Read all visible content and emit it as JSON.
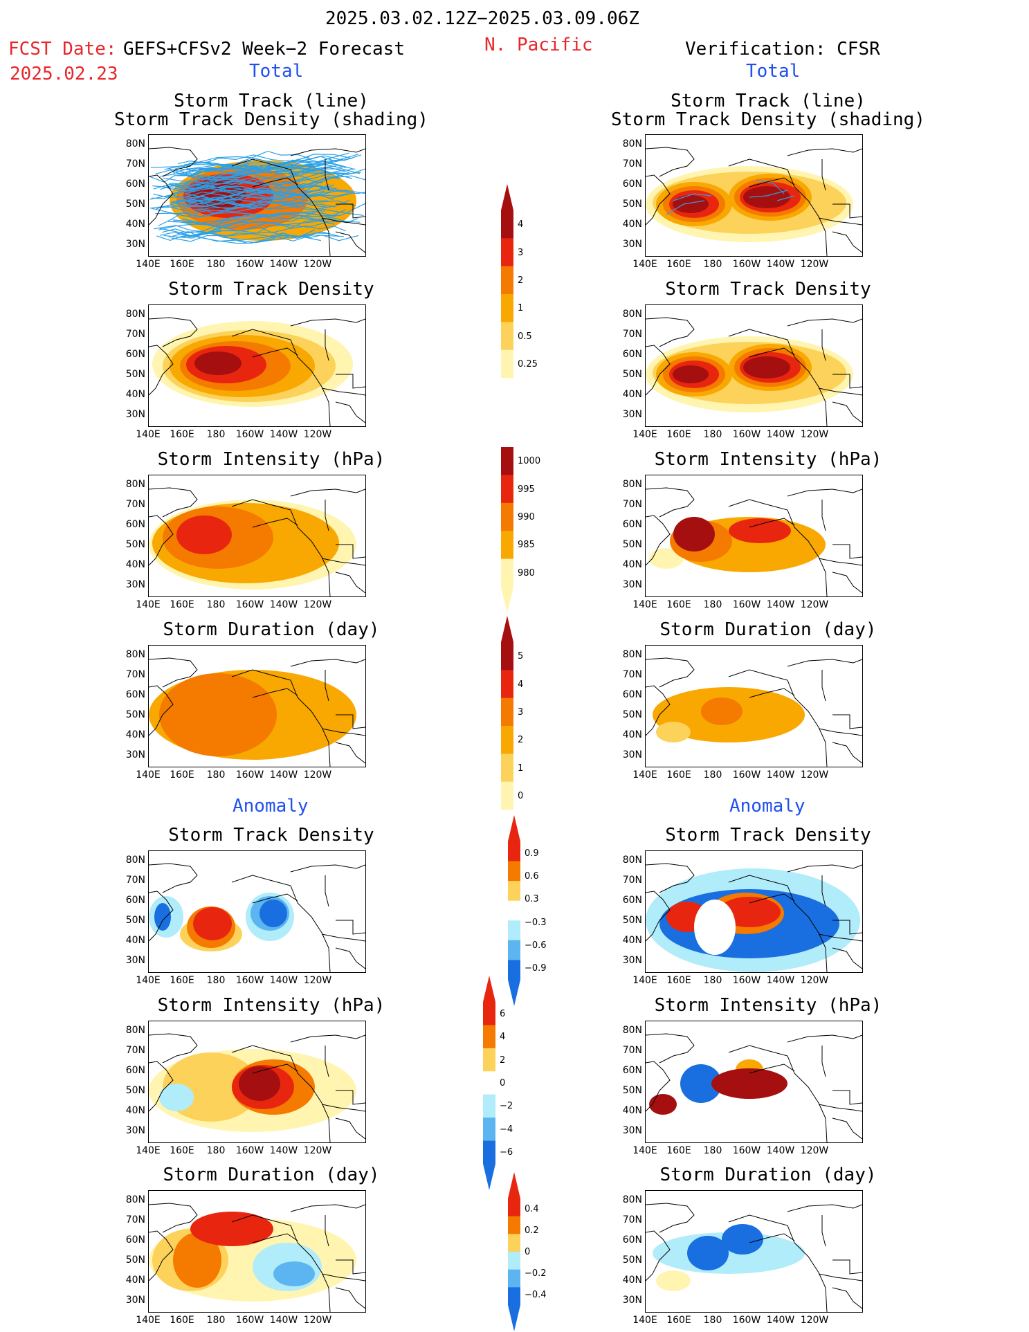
{
  "header": {
    "period": "2025.03.02.12Z−2025.03.09.06Z",
    "fcst_date_label": "FCST Date:",
    "forecast_name": "GEFS+CFSv2 Week−2 Forecast",
    "fcst_date": "2025.02.23",
    "region": "N. Pacific",
    "verification": "Verification: CFSR"
  },
  "sections": {
    "left_total": "Total",
    "right_total": "Total",
    "left_anomaly": "Anomaly",
    "right_anomaly": "Anomaly"
  },
  "panel_titles": {
    "track": "Storm Track (line)\nStorm Track Density (shading)",
    "density": "Storm Track Density",
    "intensity": "Storm Intensity (hPa)",
    "duration": "Storm Duration (day)"
  },
  "axes": {
    "lat_labels": [
      "80N",
      "70N",
      "60N",
      "50N",
      "40N",
      "30N"
    ],
    "lon_labels": [
      "140E",
      "160E",
      "180",
      "160W",
      "140W",
      "120W"
    ]
  },
  "colorbars": {
    "density_total": [
      "4",
      "3",
      "2",
      "1",
      "0.5",
      "0.25"
    ],
    "intensity_total": [
      "1000",
      "995",
      "990",
      "985",
      "980"
    ],
    "duration_total": [
      "5",
      "4",
      "3",
      "2",
      "1",
      "0"
    ],
    "density_anom": [
      "0.9",
      "0.6",
      "0.3",
      "−0.3",
      "−0.6",
      "−0.9"
    ],
    "intensity_anom": [
      "6",
      "4",
      "2",
      "0",
      "−2",
      "−4",
      "−6"
    ],
    "duration_anom": [
      "0.4",
      "0.2",
      "0",
      "−0.2",
      "−0.4"
    ]
  },
  "colors": {
    "track_line": "#2aa0e8",
    "darkred": "#a50f0f",
    "red": "#e8260f",
    "orange": "#f57a00",
    "lightorange": "#f8a800",
    "yellow": "#fcd25a",
    "paleyellow": "#fff5b0",
    "lightblue": "#b0ecfa",
    "midblue": "#5cb4f0",
    "blue": "#1a6fe0"
  }
}
